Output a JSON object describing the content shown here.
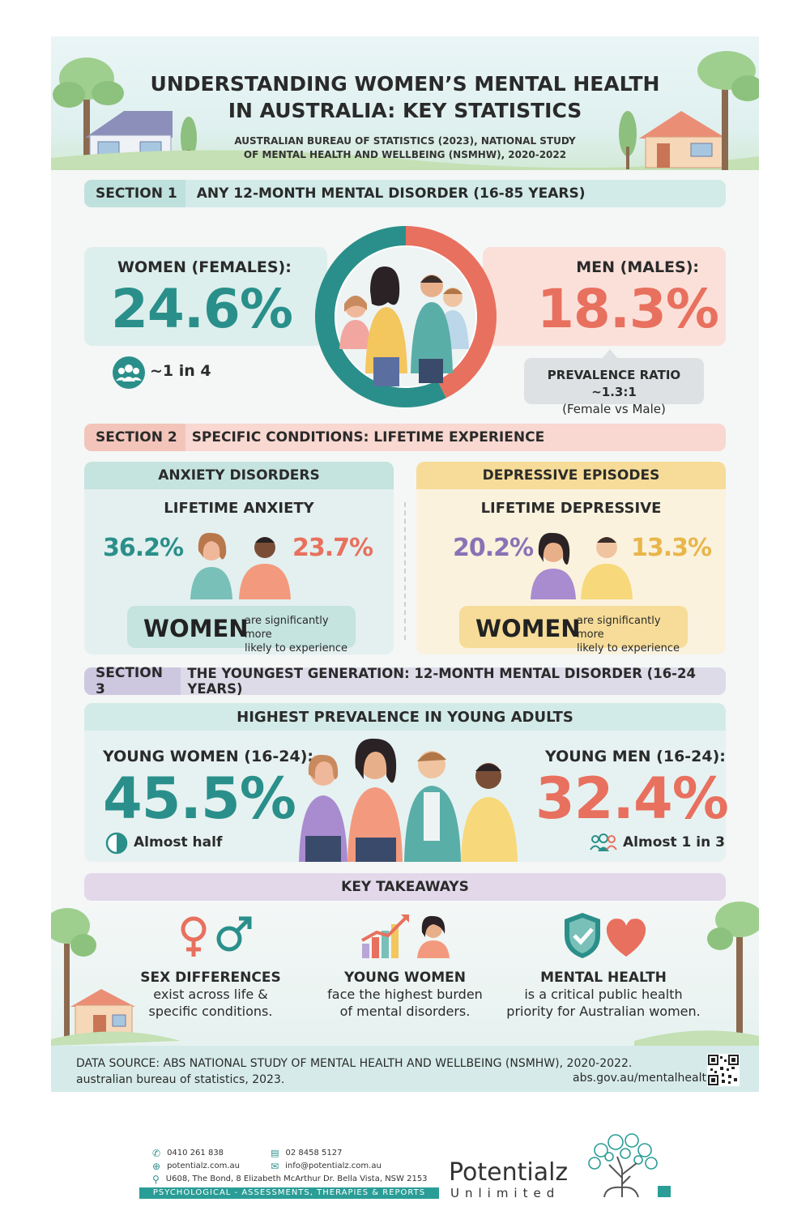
{
  "header": {
    "title_line1": "UNDERSTANDING WOMEN’S MENTAL HEALTH",
    "title_line2": "IN AUSTRALIA: KEY STATISTICS",
    "subtitle_line1": "AUSTRALIAN BUREAU OF STATISTICS (2023), NATIONAL STUDY",
    "subtitle_line2": "OF MENTAL HEALTH AND WELLBEING (NSMHW), 2020-2022"
  },
  "section1": {
    "tag": "SECTION 1",
    "title": "ANY 12-MONTH MENTAL DISORDER (16-85 YEARS)",
    "women_label": "WOMEN (FEMALES):",
    "women_value": "24.6%",
    "women_share": 24.6,
    "women_note": "~1 in 4",
    "men_label": "MEN (MALES):",
    "men_value": "18.3%",
    "men_share": 18.3,
    "ratio_line1": "PREVALENCE RATIO ~1.3:1",
    "ratio_line2": "(Female vs Male)"
  },
  "section2": {
    "tag": "SECTION 2",
    "title": "SPECIFIC CONDITIONS: LIFETIME EXPERIENCE",
    "anxiety": {
      "header": "ANXIETY DISORDERS",
      "subheader": "LIFETIME ANXIETY",
      "women_value": "36.2%",
      "men_value": "23.7%",
      "callout_big": "WOMEN",
      "callout_line1": "are significantly more",
      "callout_line2": "likely to experience"
    },
    "depressive": {
      "header": "DEPRESSIVE EPISODES",
      "subheader": "LIFETIME DEPRESSIVE",
      "women_value": "20.2%",
      "men_value": "13.3%",
      "callout_big": "WOMEN",
      "callout_line1": "are significantly more",
      "callout_line2": "likely to experience"
    }
  },
  "section3": {
    "tag": "SECTION 3",
    "title": "THE YOUNGEST GENERATION: 12-MONTH MENTAL DISORDER (16-24 YEARS)",
    "subheader": "HIGHEST PREVALENCE IN YOUNG ADULTS",
    "women_label": "YOUNG WOMEN (16-24):",
    "women_value": "45.5%",
    "women_note": "Almost half",
    "men_label": "YOUNG MEN (16-24):",
    "men_value": "32.4%",
    "men_note": "Almost 1 in 3"
  },
  "takeaways": {
    "title": "KEY TAKEAWAYS",
    "items": [
      {
        "title": "SEX DIFFERENCES",
        "line1": "exist across life &",
        "line2": "specific conditions.",
        "icon": "gender-symbols-icon"
      },
      {
        "title": "YOUNG WOMEN",
        "line1": "face the highest burden",
        "line2": "of mental disorders.",
        "icon": "rising-chart-icon"
      },
      {
        "title": "MENTAL HEALTH",
        "line1": "is a critical public health",
        "line2": "priority for Australian women.",
        "icon": "shield-heart-icon"
      }
    ]
  },
  "source": {
    "line1": "DATA SOURCE: ABS NATIONAL STUDY OF MENTAL HEALTH AND WELLBEING (NSMHW), 2020-2022.",
    "line2": "australian bureau of statistics, 2023.",
    "url": "abs.gov.au/mentalhealth"
  },
  "footer": {
    "phone1": "0410  261 838",
    "phone2": "02 8458 5127",
    "web": "potentialz.com.au",
    "email": "info@potentialz.com.au",
    "address": "U608, The Bond, 8 Elizabeth McArthur Dr. Bella Vista, NSW 2153",
    "tagline": "PSYCHOLOGICAL - ASSESSMENTS, THERAPIES & REPORTS",
    "brand1": "Potentialz",
    "brand2": "Unlimited"
  },
  "colors": {
    "teal": "#2a8f8a",
    "coral": "#e8705e",
    "purple": "#8a72b5",
    "yellow": "#e8b64a"
  }
}
